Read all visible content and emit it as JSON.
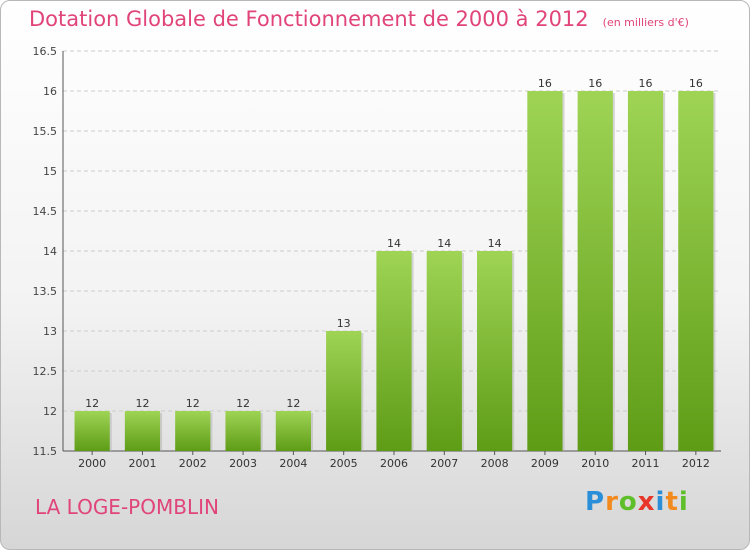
{
  "title": "Dotation Globale de Fonctionnement de 2000 à 2012",
  "unit_note": "(en milliers d'€)",
  "town": "LA LOGE-POMBLIN",
  "logo": {
    "text": "Proxiti",
    "letters": [
      {
        "char": "P",
        "color": "#2a8fd8"
      },
      {
        "char": "r",
        "color": "#f28a1e"
      },
      {
        "char": "o",
        "color": "#5fbf2a"
      },
      {
        "char": "x",
        "color": "#e8362a"
      },
      {
        "char": "i",
        "color": "#2a8fd8"
      },
      {
        "char": "t",
        "color": "#f28a1e"
      },
      {
        "char": "i",
        "color": "#5fbf2a"
      }
    ]
  },
  "colors": {
    "accent": "#e0447a",
    "bar_top": "#9fd455",
    "bar_bottom": "#5e9c16"
  },
  "chart_data": {
    "type": "bar",
    "categories": [
      "2000",
      "2001",
      "2002",
      "2003",
      "2004",
      "2005",
      "2006",
      "2007",
      "2008",
      "2009",
      "2010",
      "2011",
      "2012"
    ],
    "values": [
      12,
      12,
      12,
      12,
      12,
      13,
      14,
      14,
      14,
      16,
      16,
      16,
      16
    ],
    "value_labels": [
      "12",
      "12",
      "12",
      "12",
      "12",
      "13",
      "14",
      "14",
      "14",
      "16",
      "16",
      "16",
      "16"
    ],
    "ylim": [
      11.5,
      16.5
    ],
    "yticks": [
      11.5,
      12,
      12.5,
      13,
      13.5,
      14,
      14.5,
      15,
      15.5,
      16,
      16.5
    ],
    "ytick_labels": [
      "11.5",
      "12",
      "12.5",
      "13",
      "13.5",
      "14",
      "14.5",
      "15",
      "15.5",
      "16",
      "16.5"
    ],
    "grid": true,
    "xlabel": "",
    "ylabel": ""
  }
}
